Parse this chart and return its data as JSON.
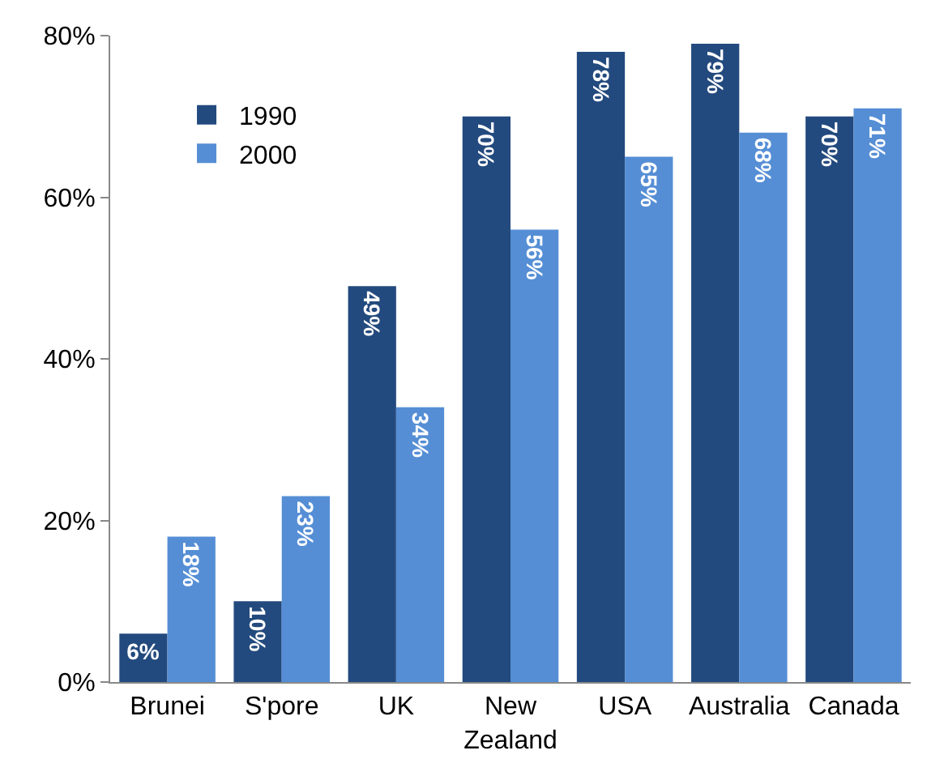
{
  "chart_data": {
    "type": "bar",
    "categories": [
      "Brunei",
      "S'pore",
      "UK",
      "New Zealand",
      "USA",
      "Australia",
      "Canada"
    ],
    "series": [
      {
        "name": "1990",
        "color": "#234a7e",
        "values": [
          6,
          10,
          49,
          70,
          78,
          79,
          70
        ],
        "value_labels": [
          "6%",
          "10%",
          "49%",
          "70%",
          "78%",
          "79%",
          "70%"
        ]
      },
      {
        "name": "2000",
        "color": "#558ed5",
        "values": [
          18,
          23,
          34,
          56,
          65,
          68,
          71
        ],
        "value_labels": [
          "18%",
          "23%",
          "34%",
          "56%",
          "65%",
          "68%",
          "71%"
        ]
      }
    ],
    "ylim": [
      0,
      80
    ],
    "yticks": [
      {
        "value": 0,
        "label": "0%"
      },
      {
        "value": 20,
        "label": "20%"
      },
      {
        "value": 40,
        "label": "40%"
      },
      {
        "value": 60,
        "label": "60%"
      },
      {
        "value": 80,
        "label": "80%"
      }
    ],
    "grid": false,
    "legend": "top left"
  }
}
